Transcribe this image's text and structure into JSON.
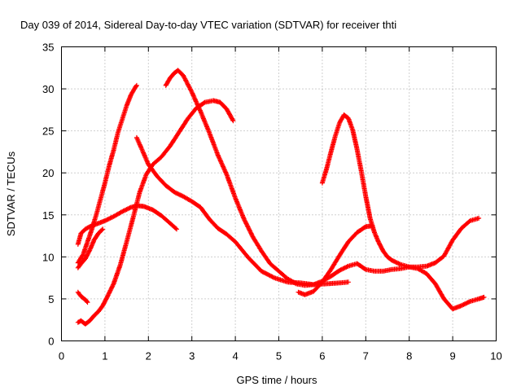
{
  "chart_data": {
    "type": "scatter",
    "title": "Day 039 of 2014, Sidereal Day-to-day VTEC variation (SDTVAR) for receiver thti",
    "xlabel": "GPS time / hours",
    "ylabel": "SDTVAR / TECUs",
    "xlim": [
      0,
      10
    ],
    "ylim": [
      0,
      35
    ],
    "x_ticks": [
      0,
      1,
      2,
      3,
      4,
      5,
      6,
      7,
      8,
      9,
      10
    ],
    "y_ticks": [
      0,
      5,
      10,
      15,
      20,
      25,
      30,
      35
    ],
    "grid": true,
    "legend": "none",
    "marker": "plus",
    "color": "#ff0000",
    "series": [
      {
        "x": [
          0.38,
          0.45,
          0.55,
          0.65,
          0.8,
          1.0,
          1.2,
          1.4,
          1.6,
          1.75
        ],
        "y": [
          11.5,
          12.8,
          13.3,
          13.6,
          13.9,
          14.3,
          14.8,
          15.4,
          15.9,
          16.1
        ]
      },
      {
        "x": [
          1.75,
          1.9,
          2.1,
          2.3,
          2.5,
          2.65
        ],
        "y": [
          16.1,
          16.0,
          15.6,
          14.9,
          14.0,
          13.3
        ]
      },
      {
        "x": [
          0.38,
          0.45,
          0.55,
          0.6
        ],
        "y": [
          5.8,
          5.3,
          4.9,
          4.6
        ]
      },
      {
        "x": [
          0.38,
          0.5,
          0.6,
          0.7,
          0.8,
          0.9,
          1.0,
          1.1,
          1.2,
          1.3,
          1.4,
          1.5,
          1.6,
          1.7,
          1.73
        ],
        "y": [
          9.3,
          10.3,
          11.8,
          13.3,
          15.0,
          16.9,
          18.8,
          20.9,
          22.7,
          24.8,
          26.4,
          28.0,
          29.3,
          30.2,
          30.4
        ]
      },
      {
        "x": [
          0.38,
          0.45,
          0.55,
          0.65,
          0.75,
          0.85,
          0.95
        ],
        "y": [
          8.7,
          9.2,
          9.8,
          10.8,
          12.0,
          12.8,
          13.3
        ]
      },
      {
        "x": [
          0.38,
          0.45,
          0.55,
          0.65,
          0.75,
          0.85,
          0.95,
          1.05,
          1.2,
          1.35,
          1.5,
          1.65,
          1.8,
          1.95,
          2.1,
          2.3,
          2.5,
          2.7,
          2.9,
          3.1,
          3.3,
          3.5,
          3.65,
          3.8,
          3.95
        ],
        "y": [
          2.2,
          2.4,
          2.0,
          2.4,
          3.0,
          3.5,
          4.2,
          5.2,
          6.8,
          9.0,
          11.8,
          14.7,
          17.7,
          19.8,
          21.0,
          21.9,
          23.2,
          24.8,
          26.4,
          27.7,
          28.4,
          28.6,
          28.4,
          27.6,
          26.2
        ]
      },
      {
        "x": [
          1.73,
          1.85,
          2.0,
          2.2,
          2.4,
          2.6,
          2.8,
          3.0,
          3.2,
          3.4,
          3.6,
          3.8,
          4.0,
          4.3,
          4.6,
          4.9,
          5.2,
          5.5,
          5.8,
          6.1,
          6.4,
          6.6
        ],
        "y": [
          24.2,
          22.8,
          21.0,
          19.6,
          18.5,
          17.7,
          17.2,
          16.6,
          15.9,
          14.5,
          13.4,
          12.7,
          11.8,
          9.9,
          8.3,
          7.5,
          7.0,
          6.9,
          6.7,
          6.8,
          6.9,
          7.0
        ]
      },
      {
        "x": [
          2.4,
          2.5,
          2.6,
          2.68,
          2.8,
          3.0,
          3.2,
          3.4,
          3.6,
          3.8,
          4.0,
          4.2,
          4.4,
          4.6,
          4.8,
          5.0,
          5.2,
          5.4,
          5.6,
          5.8,
          6.0,
          6.2,
          6.4,
          6.6,
          6.8,
          7.0,
          7.2,
          7.4,
          7.6,
          7.8,
          8.0,
          8.2,
          8.4,
          8.6,
          8.8,
          9.0,
          9.2,
          9.4,
          9.6,
          9.72
        ],
        "y": [
          30.4,
          31.3,
          31.9,
          32.2,
          31.6,
          29.6,
          27.3,
          24.8,
          22.1,
          19.8,
          17.0,
          14.5,
          12.4,
          10.7,
          9.2,
          8.3,
          7.4,
          6.8,
          6.6,
          6.7,
          7.1,
          7.7,
          8.4,
          8.9,
          9.2,
          8.5,
          8.3,
          8.3,
          8.5,
          8.6,
          8.8,
          8.6,
          8.0,
          6.8,
          5.0,
          3.8,
          4.2,
          4.7,
          5.0,
          5.2
        ]
      },
      {
        "x": [
          5.45,
          5.6,
          5.8,
          6.0,
          6.2,
          6.4,
          6.6,
          6.8,
          7.0,
          7.15
        ],
        "y": [
          5.8,
          5.5,
          5.9,
          7.0,
          8.5,
          10.2,
          11.8,
          12.9,
          13.6,
          13.7
        ]
      },
      {
        "x": [
          6.0,
          6.1,
          6.2,
          6.3,
          6.4,
          6.5,
          6.6,
          6.7,
          6.8,
          6.9,
          7.0,
          7.1,
          7.2,
          7.3,
          7.4,
          7.5,
          7.6,
          7.8,
          8.0,
          8.2,
          8.4,
          8.6,
          8.8,
          9.0,
          9.2,
          9.4,
          9.6
        ],
        "y": [
          18.8,
          20.5,
          22.5,
          24.4,
          26.0,
          26.9,
          26.5,
          25.1,
          22.8,
          20.1,
          17.2,
          14.6,
          12.9,
          11.7,
          10.7,
          10.0,
          9.6,
          9.1,
          8.8,
          8.8,
          8.9,
          9.3,
          10.1,
          12.0,
          13.4,
          14.3,
          14.6
        ]
      }
    ]
  }
}
